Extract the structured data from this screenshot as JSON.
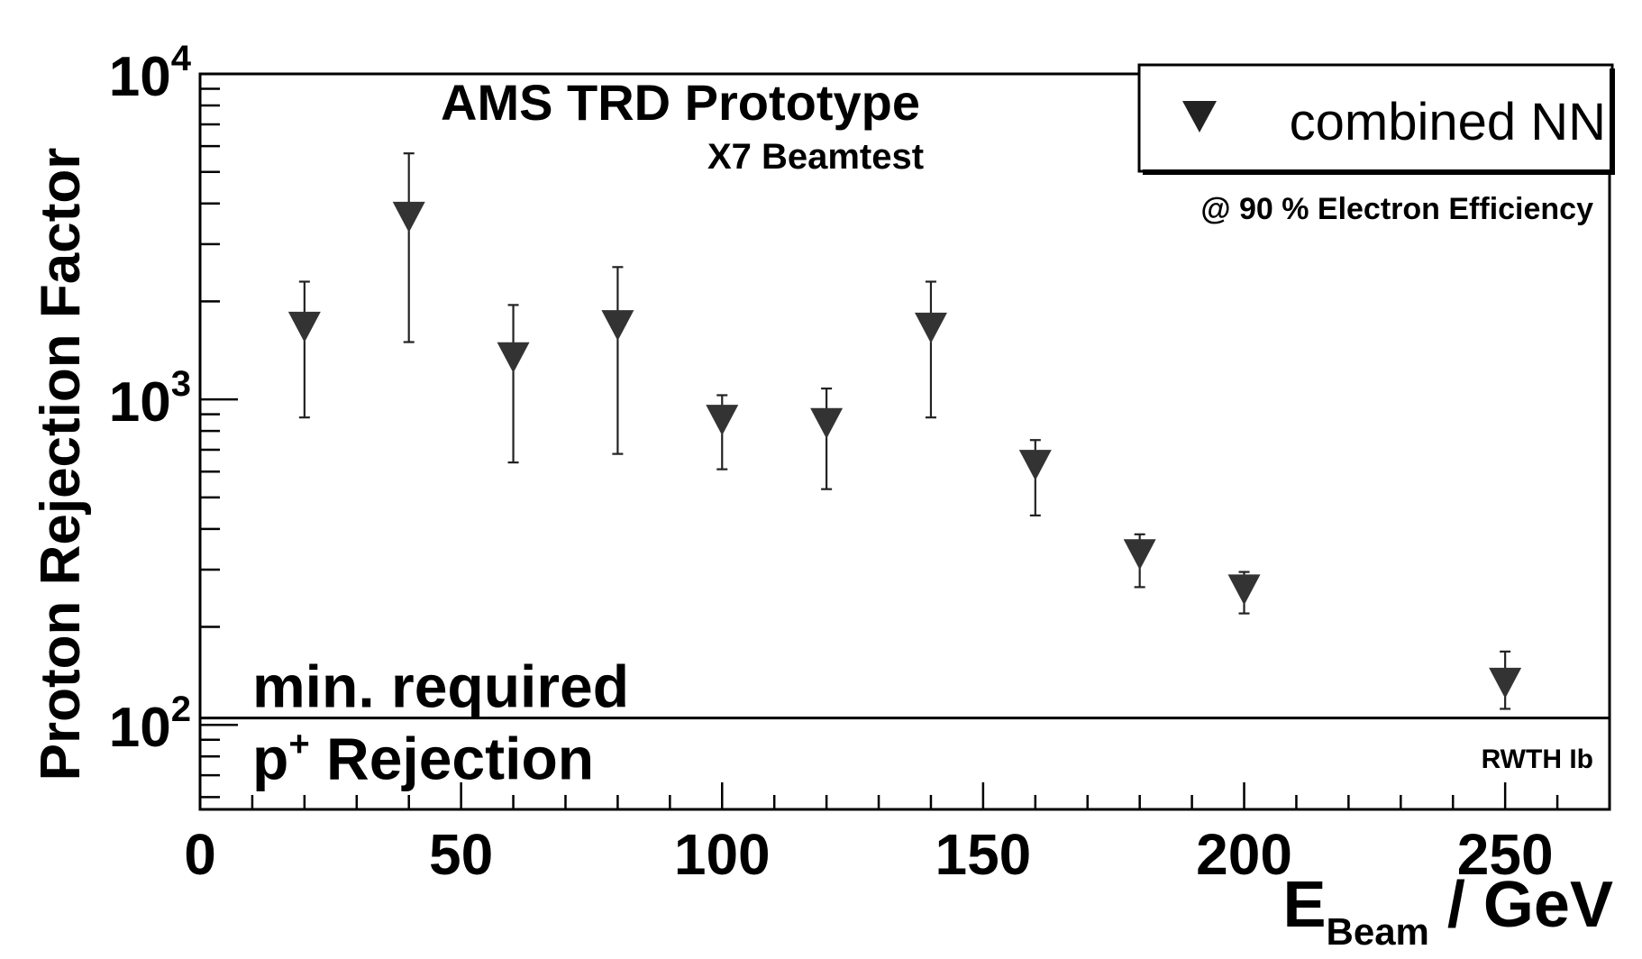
{
  "chart_data": {
    "type": "scatter",
    "title": "AMS TRD Prototype",
    "subtitle": "X7 Beamtest",
    "xlabel": {
      "main": "E",
      "sub": "Beam",
      "rest": " / GeV"
    },
    "ylabel": "Proton Rejection Factor",
    "x_ticks": [
      0,
      50,
      100,
      150,
      200,
      250
    ],
    "y_ticks": [
      {
        "value": 100,
        "base": "10",
        "exp": "2"
      },
      {
        "value": 1000,
        "base": "10",
        "exp": "3"
      },
      {
        "value": 10000,
        "base": "10",
        "exp": "4"
      }
    ],
    "xlim": [
      0,
      270
    ],
    "ylim": [
      55,
      10000
    ],
    "y_scale": "log",
    "grid": false,
    "legend": {
      "position": "top-right",
      "entries": [
        "combined NN"
      ]
    },
    "annotation_efficiency": "@ 90 % Electron Efficiency",
    "annotation_credit": "RWTH Ib",
    "threshold": {
      "value": 105,
      "label_line1": "min. required",
      "label_line2_main": "p",
      "label_line2_sup": "+",
      "label_line2_rest": " Rejection"
    },
    "series": [
      {
        "name": "combined NN",
        "marker": "triangle-down",
        "points": [
          {
            "x": 20,
            "y": 1700,
            "ylo": 880,
            "yhi": 2300
          },
          {
            "x": 40,
            "y": 3700,
            "ylo": 1500,
            "yhi": 5700
          },
          {
            "x": 60,
            "y": 1370,
            "ylo": 640,
            "yhi": 1950
          },
          {
            "x": 80,
            "y": 1720,
            "ylo": 680,
            "yhi": 2550
          },
          {
            "x": 100,
            "y": 880,
            "ylo": 610,
            "yhi": 1030
          },
          {
            "x": 120,
            "y": 860,
            "ylo": 530,
            "yhi": 1080
          },
          {
            "x": 140,
            "y": 1690,
            "ylo": 880,
            "yhi": 2300
          },
          {
            "x": 160,
            "y": 640,
            "ylo": 440,
            "yhi": 750
          },
          {
            "x": 180,
            "y": 340,
            "ylo": 265,
            "yhi": 385
          },
          {
            "x": 200,
            "y": 265,
            "ylo": 220,
            "yhi": 295
          },
          {
            "x": 250,
            "y": 137,
            "ylo": 112,
            "yhi": 168
          }
        ]
      }
    ]
  }
}
